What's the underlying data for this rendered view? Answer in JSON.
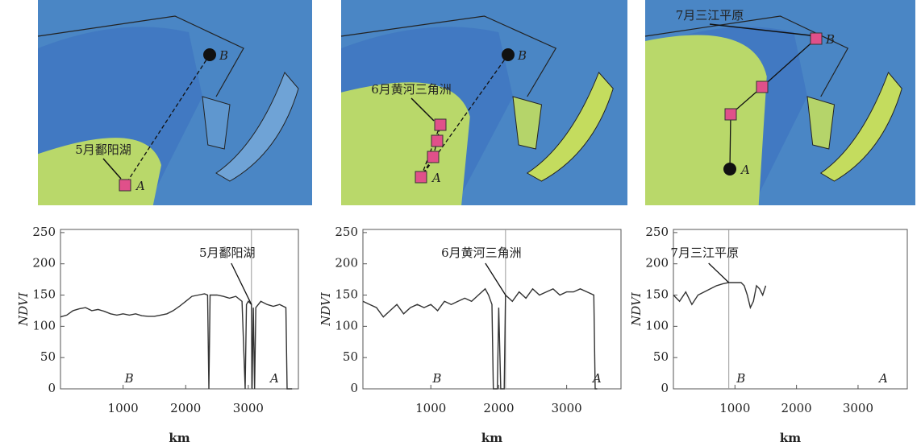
{
  "chart_data": [
    {
      "type": "line",
      "annotation": "5月鄱阳湖",
      "start_label": "B",
      "end_label": "A",
      "xlabel": "km",
      "ylabel": "NDVI",
      "x": [
        0,
        100,
        200,
        300,
        400,
        500,
        600,
        700,
        800,
        900,
        1000,
        1100,
        1200,
        1300,
        1400,
        1500,
        1600,
        1700,
        1800,
        1900,
        2000,
        2100,
        2200,
        2300,
        2350,
        2370,
        2390,
        2500,
        2600,
        2700,
        2800,
        2900,
        2950,
        2970,
        3000,
        3050,
        3060,
        3080,
        3100,
        3120,
        3200,
        3300,
        3400,
        3500,
        3600,
        3620,
        3700
      ],
      "values": [
        115,
        118,
        125,
        128,
        130,
        125,
        127,
        124,
        120,
        118,
        120,
        118,
        120,
        117,
        116,
        116,
        118,
        120,
        125,
        132,
        140,
        148,
        150,
        152,
        150,
        0,
        150,
        150,
        148,
        145,
        148,
        140,
        0,
        135,
        140,
        135,
        0,
        130,
        0,
        130,
        140,
        135,
        132,
        135,
        130,
        0,
        0
      ],
      "marker_x": 3050,
      "color": "#333333",
      "xlim": [
        0,
        3800
      ],
      "xticks": [
        1000,
        2000,
        3000
      ],
      "ylim": [
        0,
        255
      ],
      "yticks": [
        0,
        50,
        100,
        150,
        200,
        250
      ]
    },
    {
      "type": "line",
      "annotation": "6月黄河三角洲",
      "start_label": "B",
      "end_label": "A",
      "xlabel": "km",
      "ylabel": "NDVI",
      "x": [
        0,
        100,
        200,
        300,
        400,
        500,
        600,
        700,
        800,
        900,
        1000,
        1100,
        1200,
        1300,
        1400,
        1500,
        1600,
        1700,
        1800,
        1850,
        1900,
        1920,
        1980,
        2000,
        2030,
        2080,
        2100,
        2200,
        2300,
        2400,
        2500,
        2600,
        2700,
        2800,
        2900,
        3000,
        3100,
        3200,
        3300,
        3400,
        3420,
        3450
      ],
      "values": [
        140,
        135,
        130,
        115,
        125,
        135,
        120,
        130,
        135,
        130,
        135,
        125,
        140,
        135,
        140,
        145,
        140,
        150,
        160,
        150,
        135,
        0,
        0,
        130,
        0,
        0,
        150,
        140,
        155,
        145,
        160,
        150,
        155,
        160,
        150,
        155,
        155,
        160,
        155,
        150,
        0,
        0
      ],
      "marker_x": 2100,
      "color": "#333333",
      "xlim": [
        0,
        3800
      ],
      "xticks": [
        1000,
        2000,
        3000
      ],
      "ylim": [
        0,
        255
      ],
      "yticks": [
        0,
        50,
        100,
        150,
        200,
        250
      ]
    },
    {
      "type": "line",
      "annotation": "7月三江平原",
      "start_label": "B",
      "end_label": "A",
      "xlabel": "km",
      "ylabel": "NDVI",
      "x": [
        0,
        100,
        200,
        300,
        400,
        500,
        600,
        700,
        800,
        900,
        1000,
        1100,
        1150,
        1200,
        1250,
        1300,
        1350,
        1400,
        1450,
        1500
      ],
      "values": [
        150,
        140,
        155,
        135,
        150,
        155,
        160,
        165,
        168,
        170,
        170,
        170,
        165,
        150,
        130,
        140,
        165,
        160,
        150,
        165
      ],
      "marker_x": 900,
      "color": "#333333",
      "xlim": [
        0,
        3800
      ],
      "xticks": [
        1000,
        2000,
        3000
      ],
      "ylim": [
        0,
        255
      ],
      "yticks": [
        0,
        50,
        100,
        150,
        200,
        250
      ]
    }
  ]
}
